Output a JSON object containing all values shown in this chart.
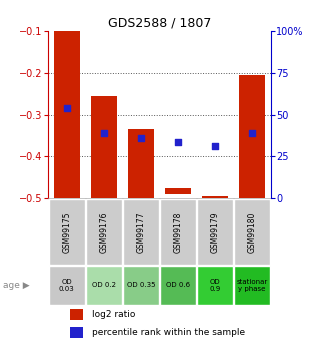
{
  "title": "GDS2588 / 1807",
  "samples": [
    "GSM99175",
    "GSM99176",
    "GSM99177",
    "GSM99178",
    "GSM99179",
    "GSM99180"
  ],
  "bar_bottoms": [
    -0.5,
    -0.5,
    -0.5,
    -0.49,
    -0.505,
    -0.5
  ],
  "bar_tops": [
    -0.1,
    -0.255,
    -0.335,
    -0.475,
    -0.495,
    -0.205
  ],
  "percentile_y": [
    -0.285,
    -0.345,
    -0.355,
    -0.365,
    -0.375,
    -0.345
  ],
  "bar_color": "#cc2200",
  "dot_color": "#2222cc",
  "ylim_left": [
    -0.5,
    -0.1
  ],
  "ylim_right": [
    0,
    100
  ],
  "yticks_left": [
    -0.5,
    -0.4,
    -0.3,
    -0.2,
    -0.1
  ],
  "yticks_right": [
    0,
    25,
    50,
    75,
    100
  ],
  "ytick_labels_right": [
    "0",
    "25",
    "50",
    "75",
    "100%"
  ],
  "age_labels": [
    "OD\n0.03",
    "OD 0.2",
    "OD 0.35",
    "OD 0.6",
    "OD\n0.9",
    "stationar\ny phase"
  ],
  "age_colors": [
    "#c8c8c8",
    "#aaddaa",
    "#88cc88",
    "#55bb55",
    "#33cc33",
    "#22bb22"
  ],
  "sample_bg_color": "#cccccc",
  "dotted_line_color": "#555555",
  "background_color": "#ffffff",
  "left_axis_color": "#cc0000",
  "right_axis_color": "#0000cc"
}
